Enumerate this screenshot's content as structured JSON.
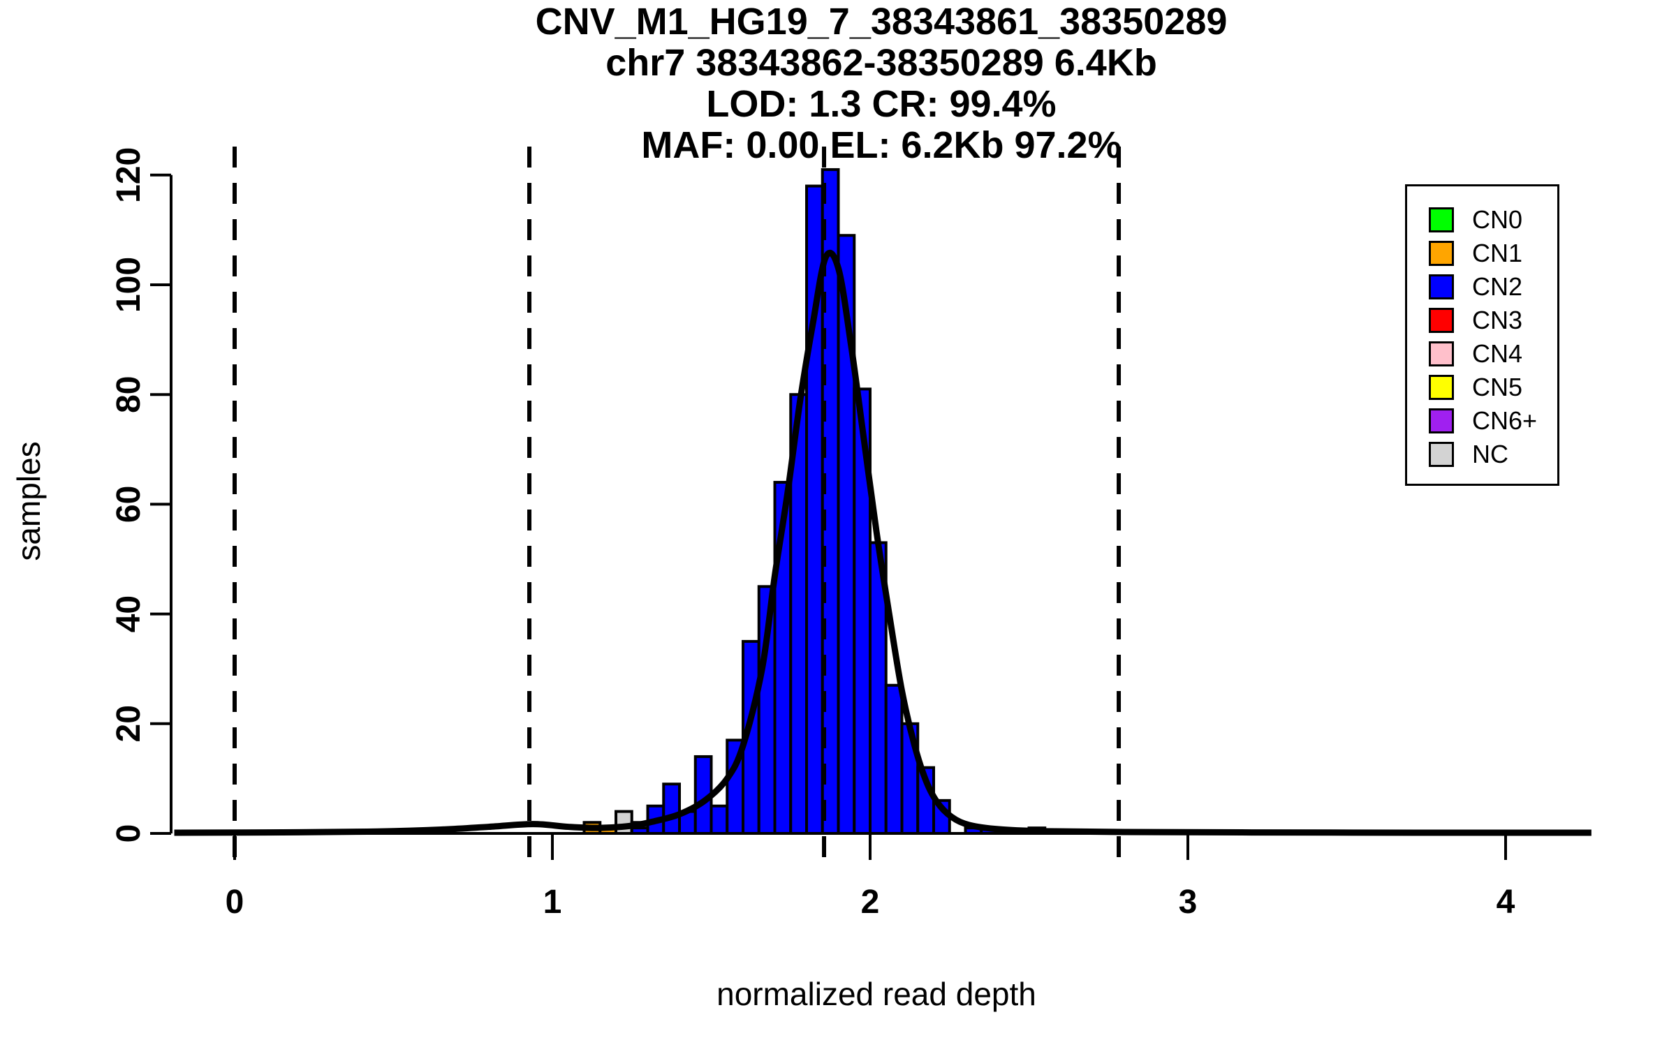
{
  "title": {
    "line1": "CNV_M1_HG19_7_38343861_38350289",
    "line2": "chr7 38343862-38350289 6.4Kb",
    "line3": "LOD: 1.3 CR: 99.4%",
    "line4": "MAF: 0.00 EL: 6.2Kb 97.2%"
  },
  "axes": {
    "x_label": "normalized read depth",
    "y_label": "samples",
    "x_tick_labels": [
      "0",
      "1",
      "2",
      "3",
      "4"
    ],
    "y_tick_labels": [
      "0",
      "20",
      "40",
      "60",
      "80",
      "100",
      "120"
    ]
  },
  "legend": {
    "items": [
      {
        "label": "CN0",
        "color": "#00FF00"
      },
      {
        "label": "CN1",
        "color": "#FFA500"
      },
      {
        "label": "CN2",
        "color": "#0000FF"
      },
      {
        "label": "CN3",
        "color": "#FF0000"
      },
      {
        "label": "CN4",
        "color": "#FFC0CB"
      },
      {
        "label": "CN5",
        "color": "#FFFF00"
      },
      {
        "label": "CN6+",
        "color": "#A020F0"
      },
      {
        "label": "NC",
        "color": "#D3D3D3"
      }
    ]
  },
  "chart_data": {
    "type": "bar",
    "subtype": "histogram-with-density-overlay",
    "title": "CNV_M1_HG19_7_38343861_38350289 chr7 38343862-38350289 6.4Kb LOD: 1.3 CR: 99.4% MAF: 0.00 EL: 6.2Kb 97.2%",
    "xlabel": "normalized read depth",
    "ylabel": "samples",
    "xlim": [
      -0.2,
      4.28
    ],
    "ylim": [
      0,
      120
    ],
    "x_ticks": [
      0,
      1,
      2,
      3,
      4
    ],
    "y_ticks": [
      0,
      20,
      40,
      60,
      80,
      100,
      120
    ],
    "grid": false,
    "legend_position": "top-right",
    "bin_width": 0.05,
    "bars": [
      {
        "x0": 1.1,
        "count": 2,
        "cn": "CN1"
      },
      {
        "x0": 1.15,
        "count": 1,
        "cn": "CN1"
      },
      {
        "x0": 1.2,
        "count": 4,
        "cn": "NC"
      },
      {
        "x0": 1.25,
        "count": 2,
        "cn": "NC"
      },
      {
        "x0": 1.25,
        "count": 1,
        "cn": "CN2"
      },
      {
        "x0": 1.3,
        "count": 5,
        "cn": "CN2"
      },
      {
        "x0": 1.35,
        "count": 9,
        "cn": "CN2"
      },
      {
        "x0": 1.4,
        "count": 4,
        "cn": "CN2"
      },
      {
        "x0": 1.45,
        "count": 14,
        "cn": "CN2"
      },
      {
        "x0": 1.5,
        "count": 5,
        "cn": "CN2"
      },
      {
        "x0": 1.55,
        "count": 17,
        "cn": "CN2"
      },
      {
        "x0": 1.6,
        "count": 35,
        "cn": "CN2"
      },
      {
        "x0": 1.65,
        "count": 45,
        "cn": "CN2"
      },
      {
        "x0": 1.7,
        "count": 64,
        "cn": "CN2"
      },
      {
        "x0": 1.75,
        "count": 80,
        "cn": "CN2"
      },
      {
        "x0": 1.8,
        "count": 118,
        "cn": "CN2"
      },
      {
        "x0": 1.85,
        "count": 121,
        "cn": "CN2"
      },
      {
        "x0": 1.9,
        "count": 109,
        "cn": "CN2"
      },
      {
        "x0": 1.95,
        "count": 81,
        "cn": "CN2"
      },
      {
        "x0": 2.0,
        "count": 53,
        "cn": "CN2"
      },
      {
        "x0": 2.05,
        "count": 27,
        "cn": "CN2"
      },
      {
        "x0": 2.1,
        "count": 20,
        "cn": "CN2"
      },
      {
        "x0": 2.15,
        "count": 12,
        "cn": "CN2"
      },
      {
        "x0": 2.2,
        "count": 6,
        "cn": "CN2"
      },
      {
        "x0": 2.3,
        "count": 1,
        "cn": "CN2"
      },
      {
        "x0": 2.35,
        "count": 1,
        "cn": "CN2"
      },
      {
        "x0": 2.5,
        "count": 1,
        "cn": "CN2"
      }
    ],
    "dashed_guidelines_x": [
      0,
      0.9275,
      1.855,
      2.7825
    ],
    "density_curve": [
      [
        -0.19,
        0.12
      ],
      [
        0.2,
        0.2
      ],
      [
        0.45,
        0.35
      ],
      [
        0.65,
        0.7
      ],
      [
        0.8,
        1.2
      ],
      [
        0.94,
        1.7
      ],
      [
        1.05,
        1.2
      ],
      [
        1.15,
        1.0
      ],
      [
        1.25,
        1.4
      ],
      [
        1.32,
        2.2
      ],
      [
        1.4,
        3.5
      ],
      [
        1.48,
        6
      ],
      [
        1.55,
        10
      ],
      [
        1.6,
        16
      ],
      [
        1.66,
        30
      ],
      [
        1.7,
        47
      ],
      [
        1.74,
        62
      ],
      [
        1.78,
        79
      ],
      [
        1.82,
        93
      ],
      [
        1.86,
        105
      ],
      [
        1.9,
        103
      ],
      [
        1.94,
        89
      ],
      [
        1.98,
        72
      ],
      [
        2.02,
        55
      ],
      [
        2.06,
        40
      ],
      [
        2.1,
        26
      ],
      [
        2.14,
        16
      ],
      [
        2.18,
        9
      ],
      [
        2.22,
        5
      ],
      [
        2.27,
        2.5
      ],
      [
        2.33,
        1.3
      ],
      [
        2.42,
        0.7
      ],
      [
        2.55,
        0.4
      ],
      [
        2.8,
        0.25
      ],
      [
        3.2,
        0.18
      ],
      [
        3.8,
        0.13
      ],
      [
        4.27,
        0.12
      ]
    ],
    "colors": {
      "CN0": "#00FF00",
      "CN1": "#FFA500",
      "CN2": "#0000FF",
      "CN3": "#FF0000",
      "CN4": "#FFC0CB",
      "CN5": "#FFFF00",
      "CN6+": "#A020F0",
      "NC": "#D3D3D3"
    }
  }
}
